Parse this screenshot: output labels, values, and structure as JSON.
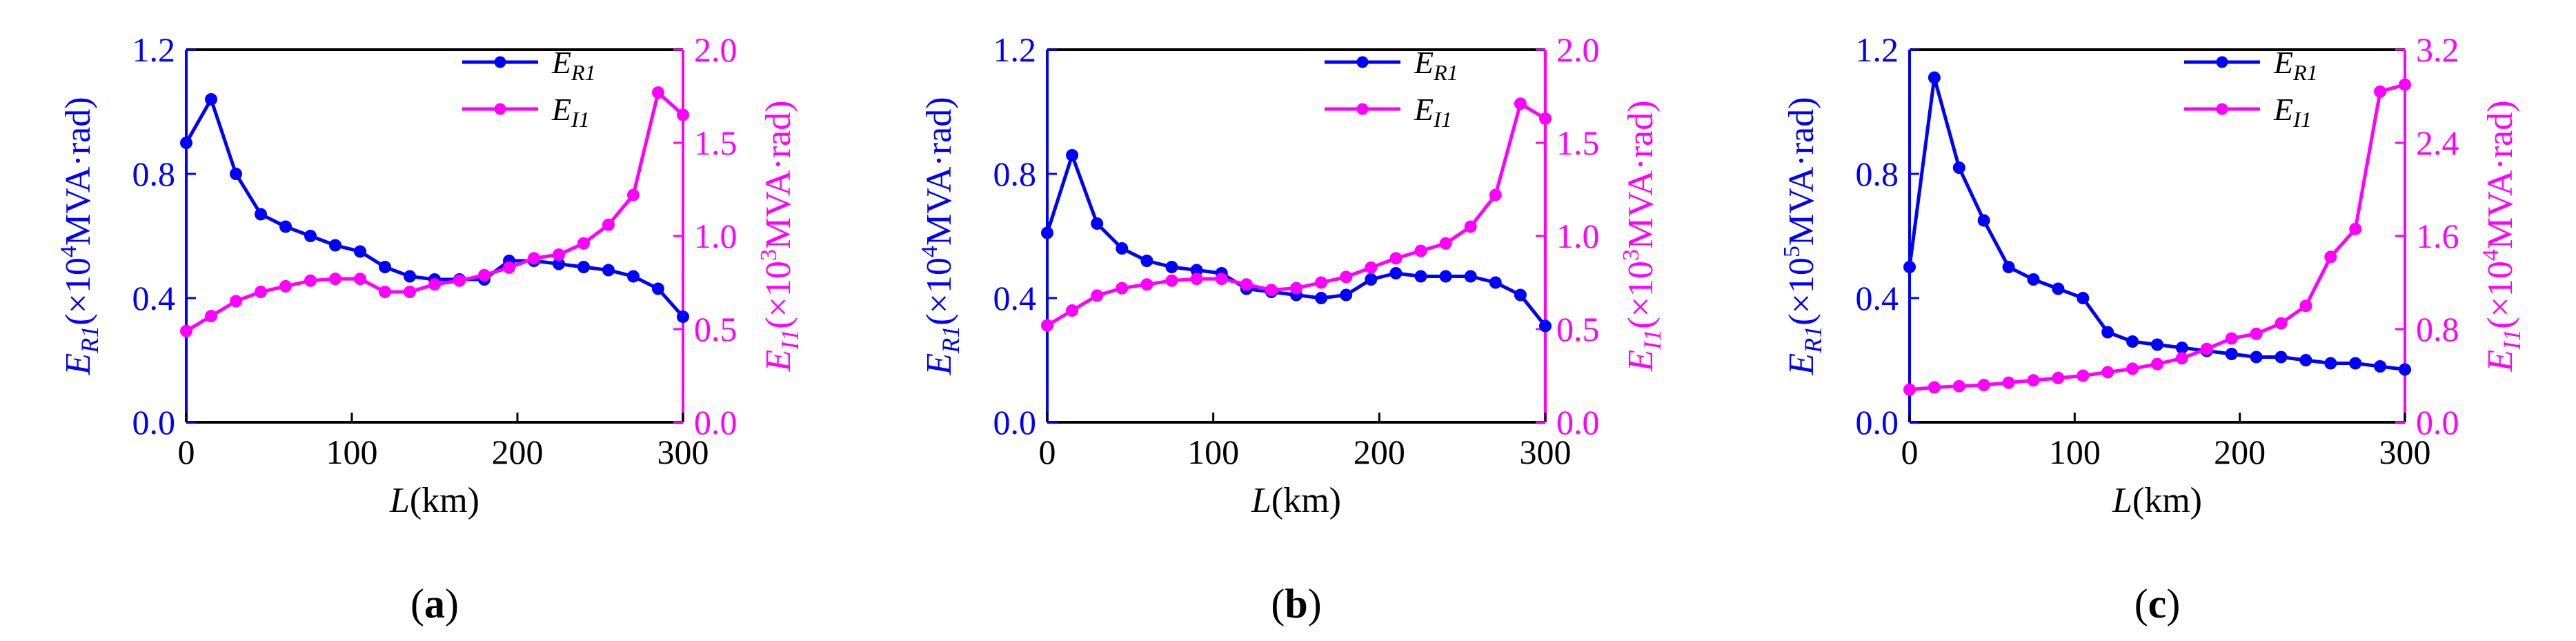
{
  "figure": {
    "x_title_var": "L",
    "x_title_unit": "(km)",
    "colors": {
      "R": "#0000ff",
      "I": "#ff00ff",
      "axis": "#000000"
    }
  },
  "chart_data": [
    {
      "type": "line",
      "panel": "a",
      "panel_label": "a",
      "x": [
        0,
        15,
        30,
        45,
        60,
        75,
        90,
        105,
        120,
        135,
        150,
        165,
        180,
        195,
        210,
        225,
        240,
        255,
        270,
        285,
        300
      ],
      "xlim": [
        0,
        300
      ],
      "xticks": [
        0,
        100,
        200,
        300
      ],
      "left_axis": {
        "var": "E",
        "sub": "R1",
        "scale": "×10",
        "exp": "4",
        "unit": "MVA·rad",
        "ylim": [
          0,
          1.2
        ],
        "ticks": [
          "0.0",
          "0.4",
          "0.8",
          "1.2"
        ]
      },
      "right_axis": {
        "var": "E",
        "sub": "I1",
        "scale": "×10",
        "exp": "3",
        "unit": "MVA·rad",
        "ylim": [
          0,
          2.0
        ],
        "ticks": [
          "0.0",
          "0.5",
          "1.0",
          "1.5",
          "2.0"
        ]
      },
      "series": [
        {
          "name": "E",
          "sub": "R1",
          "axis": "left",
          "values": [
            0.9,
            1.04,
            0.8,
            0.67,
            0.63,
            0.6,
            0.57,
            0.55,
            0.5,
            0.47,
            0.46,
            0.46,
            0.46,
            0.52,
            0.52,
            0.51,
            0.5,
            0.49,
            0.47,
            0.43,
            0.34
          ]
        },
        {
          "name": "E",
          "sub": "I1",
          "axis": "right",
          "values": [
            0.49,
            0.57,
            0.65,
            0.7,
            0.73,
            0.76,
            0.77,
            0.77,
            0.7,
            0.7,
            0.74,
            0.76,
            0.79,
            0.83,
            0.88,
            0.9,
            0.96,
            1.06,
            1.22,
            1.77,
            1.65
          ]
        }
      ]
    },
    {
      "type": "line",
      "panel": "b",
      "panel_label": "b",
      "x": [
        0,
        15,
        30,
        45,
        60,
        75,
        90,
        105,
        120,
        135,
        150,
        165,
        180,
        195,
        210,
        225,
        240,
        255,
        270,
        285,
        300
      ],
      "xlim": [
        0,
        300
      ],
      "xticks": [
        0,
        100,
        200,
        300
      ],
      "left_axis": {
        "var": "E",
        "sub": "R1",
        "scale": "×10",
        "exp": "4",
        "unit": "MVA·rad",
        "ylim": [
          0,
          1.2
        ],
        "ticks": [
          "0.0",
          "0.4",
          "0.8",
          "1.2"
        ]
      },
      "right_axis": {
        "var": "E",
        "sub": "I1",
        "scale": "×10",
        "exp": "3",
        "unit": "MVA·rad",
        "ylim": [
          0,
          2.0
        ],
        "ticks": [
          "0.0",
          "0.5",
          "1.0",
          "1.5",
          "2.0"
        ]
      },
      "series": [
        {
          "name": "E",
          "sub": "R1",
          "axis": "left",
          "values": [
            0.61,
            0.86,
            0.64,
            0.56,
            0.52,
            0.5,
            0.49,
            0.48,
            0.43,
            0.42,
            0.41,
            0.4,
            0.41,
            0.46,
            0.48,
            0.47,
            0.47,
            0.47,
            0.45,
            0.41,
            0.31
          ]
        },
        {
          "name": "E",
          "sub": "I1",
          "axis": "right",
          "values": [
            0.52,
            0.6,
            0.68,
            0.72,
            0.74,
            0.76,
            0.77,
            0.77,
            0.74,
            0.71,
            0.72,
            0.75,
            0.78,
            0.83,
            0.88,
            0.92,
            0.96,
            1.05,
            1.22,
            1.71,
            1.63
          ]
        }
      ]
    },
    {
      "type": "line",
      "panel": "c",
      "panel_label": "c",
      "x": [
        0,
        15,
        30,
        45,
        60,
        75,
        90,
        105,
        120,
        135,
        150,
        165,
        180,
        195,
        210,
        225,
        240,
        255,
        270,
        285,
        300
      ],
      "xlim": [
        0,
        300
      ],
      "xticks": [
        0,
        100,
        200,
        300
      ],
      "left_axis": {
        "var": "E",
        "sub": "R1",
        "scale": "×10",
        "exp": "5",
        "unit": "MVA·rad",
        "ylim": [
          0,
          1.2
        ],
        "ticks": [
          "0.0",
          "0.4",
          "0.8",
          "1.2"
        ]
      },
      "right_axis": {
        "var": "E",
        "sub": "I1",
        "scale": "×10",
        "exp": "4",
        "unit": "MVA·rad",
        "ylim": [
          0,
          3.2
        ],
        "ticks": [
          "0.0",
          "0.8",
          "1.6",
          "2.4",
          "3.2"
        ]
      },
      "series": [
        {
          "name": "E",
          "sub": "R1",
          "axis": "left",
          "values": [
            0.5,
            1.11,
            0.82,
            0.65,
            0.5,
            0.46,
            0.43,
            0.4,
            0.29,
            0.26,
            0.25,
            0.24,
            0.23,
            0.22,
            0.21,
            0.21,
            0.2,
            0.19,
            0.19,
            0.18,
            0.17
          ]
        },
        {
          "name": "E",
          "sub": "I1",
          "axis": "right",
          "values": [
            0.28,
            0.3,
            0.31,
            0.32,
            0.34,
            0.36,
            0.38,
            0.4,
            0.43,
            0.46,
            0.5,
            0.55,
            0.63,
            0.72,
            0.76,
            0.85,
            1.0,
            1.42,
            1.66,
            2.84,
            2.9
          ]
        }
      ]
    }
  ]
}
